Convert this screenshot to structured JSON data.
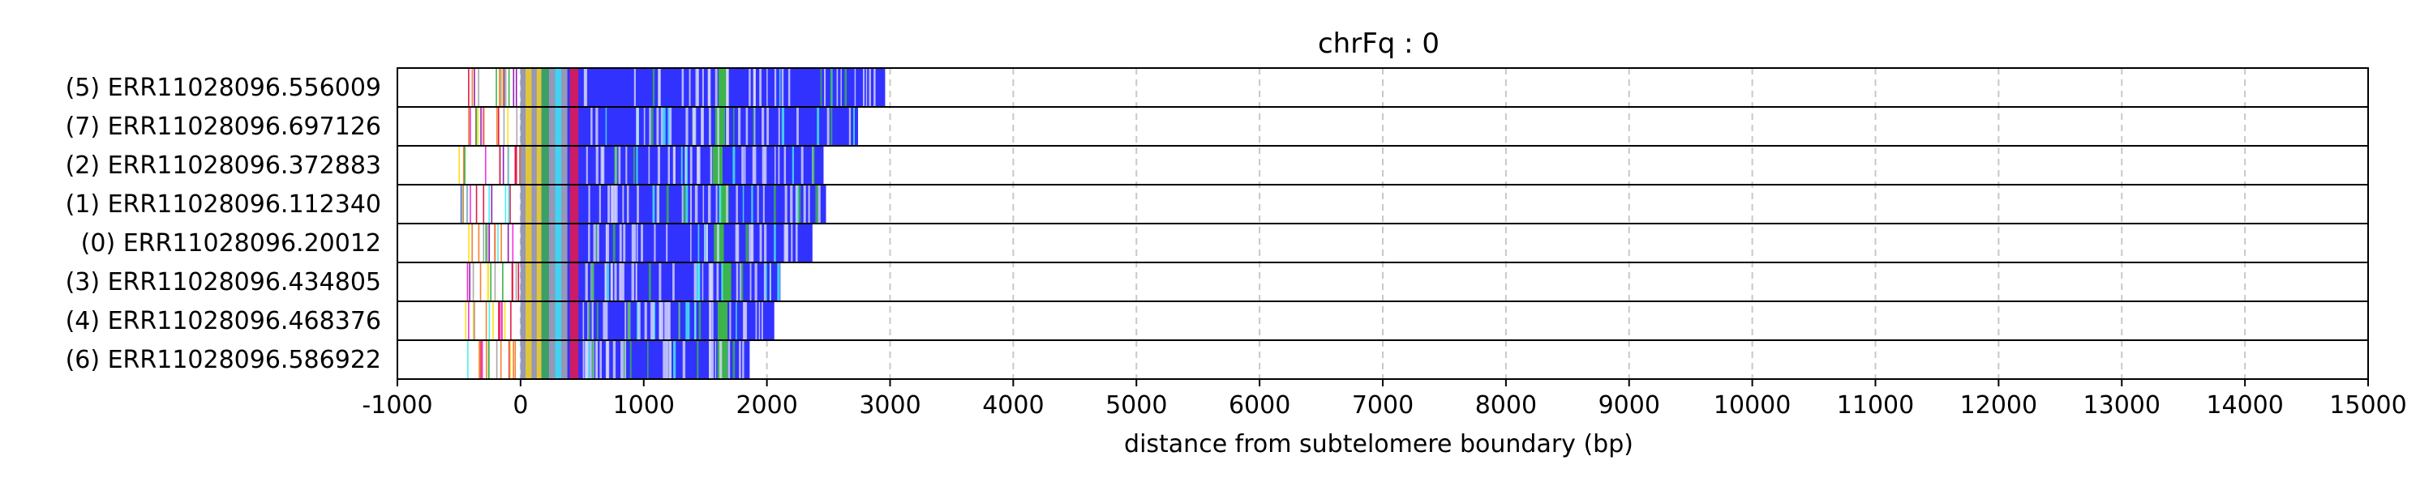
{
  "chart_data": {
    "type": "bar",
    "title": "chrFq : 0",
    "xlabel": "distance from subtelomere boundary (bp)",
    "xlim": [
      -1000,
      15000
    ],
    "xticks": [
      -1000,
      0,
      1000,
      2000,
      3000,
      4000,
      5000,
      6000,
      7000,
      8000,
      9000,
      10000,
      11000,
      12000,
      13000,
      14000,
      15000
    ],
    "grid": "vertical dashed",
    "colors": {
      "main": "#3232ff",
      "green": "#3cb44b",
      "yellow": "#ffe119",
      "red": "#e6194b",
      "cyan": "#46f0f0",
      "pink": "#f032e6",
      "gray": "#a9a9a9"
    },
    "reads": [
      {
        "label": "(5) ERR11028096.556009",
        "start": -480,
        "end": 2960,
        "green_center": 1650
      },
      {
        "label": "(7) ERR11028096.697126",
        "start": -470,
        "end": 2740,
        "green_center": 1620
      },
      {
        "label": "(2) ERR11028096.372883",
        "start": -520,
        "end": 2460,
        "green_center": 1600
      },
      {
        "label": "(1) ERR11028096.112340",
        "start": -490,
        "end": 2480,
        "green_center": 1650
      },
      {
        "label": "(0) ERR11028096.20012",
        "start": -450,
        "end": 2370,
        "green_center": 1610
      },
      {
        "label": "(3) ERR11028096.434805",
        "start": -470,
        "end": 2110,
        "green_center": 1670
      },
      {
        "label": "(4) ERR11028096.468376",
        "start": -480,
        "end": 2060,
        "green_center": 1640
      },
      {
        "label": "(6) ERR11028096.586922",
        "start": -470,
        "end": 1860,
        "green_center": 1640
      }
    ]
  }
}
